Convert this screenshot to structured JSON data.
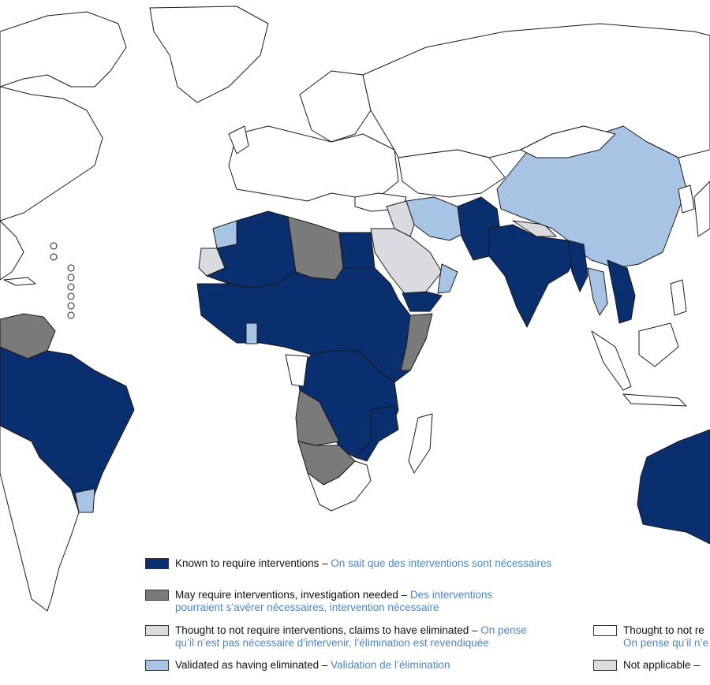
{
  "colors": {
    "known": "#0a2f6e",
    "may": "#7a7a7a",
    "thought": "#d9dbe1",
    "validated": "#a8c4e5",
    "thought_white": "#ffffff",
    "not_applicable": "#dcdcdc",
    "outline": "#1a1a1a",
    "french_text": "#4a86c5"
  },
  "legend": {
    "known": {
      "en": "Known to require interventions",
      "fr": "On sait que des interventions sont nécessaires"
    },
    "may": {
      "en": "May require interventions, investigation needed",
      "fr1": "Des interventions",
      "fr2": "pourraient s’avérer nécessaires, intervention nécessaire"
    },
    "thought": {
      "en": "Thought to not require interventions, claims to have eliminated",
      "fr1": "On pense",
      "fr2": "qu’il n’est pas nécessaire d’intervenir, l’élimination est revendiquée"
    },
    "validated": {
      "en": "Validated as having eliminated",
      "fr": "Validation de l’élimination"
    },
    "thought_white": {
      "en": "Thought to not re",
      "fr": "On pense qu’il n’e"
    },
    "not_applicable": {
      "en": "Not applicable",
      "fr": ""
    },
    "dash": " – "
  }
}
